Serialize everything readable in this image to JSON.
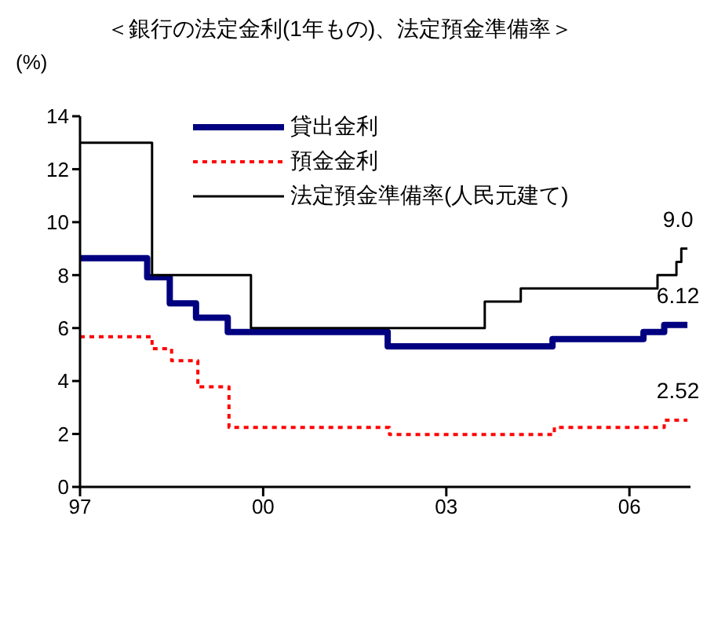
{
  "chart_data": {
    "type": "step",
    "title": "＜銀行の法定金利(1年もの)、法定預金準備率＞",
    "ylabel": "(%)",
    "xlim": [
      1997,
      2007
    ],
    "xticks": [
      {
        "value": 1997,
        "label": "97"
      },
      {
        "value": 2000,
        "label": "00"
      },
      {
        "value": 2003,
        "label": "03"
      },
      {
        "value": 2006,
        "label": "06"
      }
    ],
    "ylim": [
      0,
      14
    ],
    "yticks": [
      0,
      2,
      4,
      6,
      8,
      10,
      12,
      14
    ],
    "legend": "top right",
    "marker": "none",
    "series": [
      {
        "name": "貸出金利",
        "color": "#000080",
        "line_style": "solid",
        "x": [
          1997,
          1998.1,
          1998.47,
          1998.9,
          1999.42,
          2002.04,
          2004.74,
          2006.23,
          2006.57,
          2006.95
        ],
        "values": [
          8.64,
          7.92,
          6.93,
          6.39,
          5.85,
          5.31,
          5.58,
          5.85,
          6.12,
          6.12
        ],
        "value_labels": [
          null,
          null,
          null,
          null,
          null,
          null,
          null,
          null,
          null,
          "6.12"
        ]
      },
      {
        "name": "預金金利",
        "color": "#ff0000",
        "line_style": "dotted",
        "x": [
          1997,
          1998.18,
          1998.5,
          1998.93,
          1999.44,
          2002.07,
          2004.77,
          2006.57,
          2006.95
        ],
        "values": [
          5.67,
          5.22,
          4.77,
          3.78,
          2.25,
          1.98,
          2.25,
          2.52,
          2.52
        ],
        "value_labels": [
          null,
          null,
          null,
          null,
          null,
          null,
          null,
          null,
          "2.52"
        ]
      },
      {
        "name": "法定預金準備率(人民元建て)",
        "color": "#000000",
        "line_style": "solid",
        "x": [
          1997,
          1998.18,
          1999.8,
          2003.63,
          2004.22,
          2006.46,
          2006.77,
          2006.85,
          2006.95
        ],
        "values": [
          13,
          8,
          6,
          7,
          7.5,
          8,
          8.5,
          9.0,
          9.0
        ],
        "value_labels": [
          null,
          null,
          null,
          null,
          null,
          null,
          null,
          null,
          "9.0"
        ]
      }
    ]
  }
}
